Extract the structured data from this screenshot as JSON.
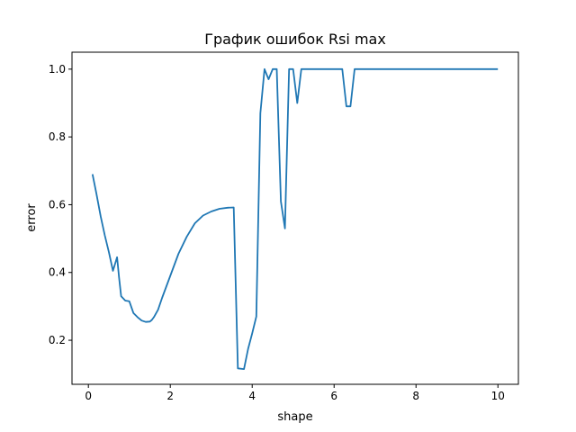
{
  "chart_data": {
    "type": "line",
    "title": "График ошибок Rsi max",
    "xlabel": "shape",
    "ylabel": "error",
    "xlim": [
      -0.4,
      10.5
    ],
    "ylim": [
      0.07,
      1.05
    ],
    "xticks": [
      0,
      2,
      4,
      6,
      8,
      10
    ],
    "xtick_labels": [
      "0",
      "2",
      "4",
      "6",
      "8",
      "10"
    ],
    "yticks": [
      0.2,
      0.4,
      0.6,
      0.8,
      1.0
    ],
    "ytick_labels": [
      "0.2",
      "0.4",
      "0.6",
      "0.8",
      "1.0"
    ],
    "grid": false,
    "legend": false,
    "line_color": "#1f77b4",
    "series": [
      {
        "x": [
          0.1,
          0.2,
          0.3,
          0.4,
          0.5,
          0.6,
          0.7,
          0.75,
          0.8,
          0.9,
          1.0,
          1.1,
          1.2,
          1.3,
          1.4,
          1.5,
          1.55,
          1.6,
          1.7,
          1.8,
          2.0,
          2.2,
          2.4,
          2.6,
          2.8,
          3.0,
          3.2,
          3.4,
          3.55,
          3.65,
          3.8,
          3.9,
          4.0,
          4.1,
          4.2,
          4.3,
          4.4,
          4.5,
          4.6,
          4.7,
          4.8,
          4.9,
          5.0,
          5.1,
          5.2,
          5.3,
          5.5,
          6.0,
          6.2,
          6.3,
          6.4,
          6.5,
          6.6,
          7.0,
          8.0,
          9.0,
          10.0
        ],
        "y": [
          0.69,
          0.63,
          0.565,
          0.51,
          0.46,
          0.405,
          0.445,
          0.385,
          0.33,
          0.317,
          0.315,
          0.28,
          0.268,
          0.258,
          0.254,
          0.255,
          0.26,
          0.268,
          0.29,
          0.325,
          0.39,
          0.455,
          0.505,
          0.545,
          0.568,
          0.58,
          0.588,
          0.591,
          0.592,
          0.117,
          0.115,
          0.175,
          0.22,
          0.27,
          0.87,
          1.0,
          0.97,
          1.0,
          1.0,
          0.61,
          0.53,
          1.0,
          1.0,
          0.9,
          1.0,
          1.0,
          1.0,
          1.0,
          1.0,
          0.89,
          0.89,
          1.0,
          1.0,
          1.0,
          1.0,
          1.0,
          1.0
        ]
      }
    ]
  }
}
